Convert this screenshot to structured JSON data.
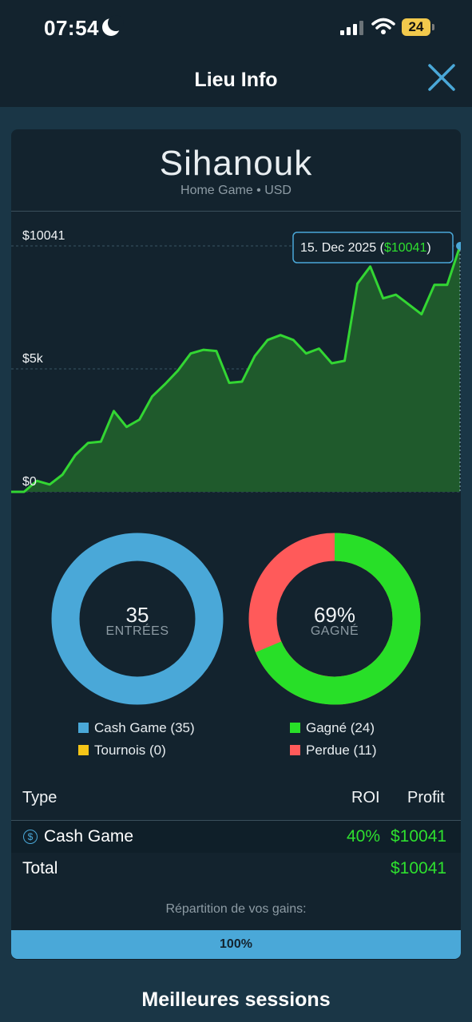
{
  "status": {
    "time": "07:54",
    "battery": "24"
  },
  "header": {
    "title": "Lieu Info"
  },
  "venue": {
    "name": "Sihanouk",
    "subtitle": "Home Game • USD"
  },
  "chart_data": {
    "type": "area",
    "yticks": [
      "$10041",
      "$5k",
      "$0"
    ],
    "ylim": [
      0,
      10041
    ],
    "series": [
      {
        "values": [
          0,
          0,
          450,
          300,
          700,
          1500,
          2000,
          2050,
          3300,
          2650,
          2950,
          3900,
          4400,
          4950,
          5650,
          5800,
          5750,
          4450,
          4500,
          5550,
          6200,
          6400,
          6200,
          5650,
          5850,
          5250,
          5350,
          8500,
          9200,
          7900,
          8050,
          7650,
          7250,
          8450,
          8450,
          10041
        ]
      }
    ],
    "tooltip": {
      "date": "15. Dec 2025 (",
      "value": "$10041",
      "close": ")"
    },
    "colors": {
      "line": "#33d633",
      "fill": "#1f5a2c"
    }
  },
  "donut_entries": {
    "value": "35",
    "label": "ENTRÉES",
    "segments": [
      {
        "name": "Cash Game",
        "value": 35,
        "color": "#4aa8d8"
      },
      {
        "name": "Tournois",
        "value": 0,
        "color": "#f5c518"
      }
    ]
  },
  "donut_wins": {
    "value": "69%",
    "label": "GAGNÉ",
    "segments": [
      {
        "name": "Gagné",
        "value": 24,
        "color": "#28df28"
      },
      {
        "name": "Perdue",
        "value": 11,
        "color": "#ff5a5a"
      }
    ]
  },
  "legend": {
    "cash": "Cash Game (35)",
    "tournois": "Tournois (0)",
    "gagne": "Gagné (24)",
    "perdue": "Perdue (11)"
  },
  "table": {
    "headers": {
      "type": "Type",
      "roi": "ROI",
      "profit": "Profit"
    },
    "rows": [
      {
        "type": "Cash Game",
        "roi": "40%",
        "profit": "$10041"
      }
    ],
    "total": {
      "label": "Total",
      "profit": "$10041"
    }
  },
  "distribution": {
    "label": "Répartition de vos gains:",
    "bar_value": "100%"
  },
  "best_sessions": "Meilleures sessions"
}
